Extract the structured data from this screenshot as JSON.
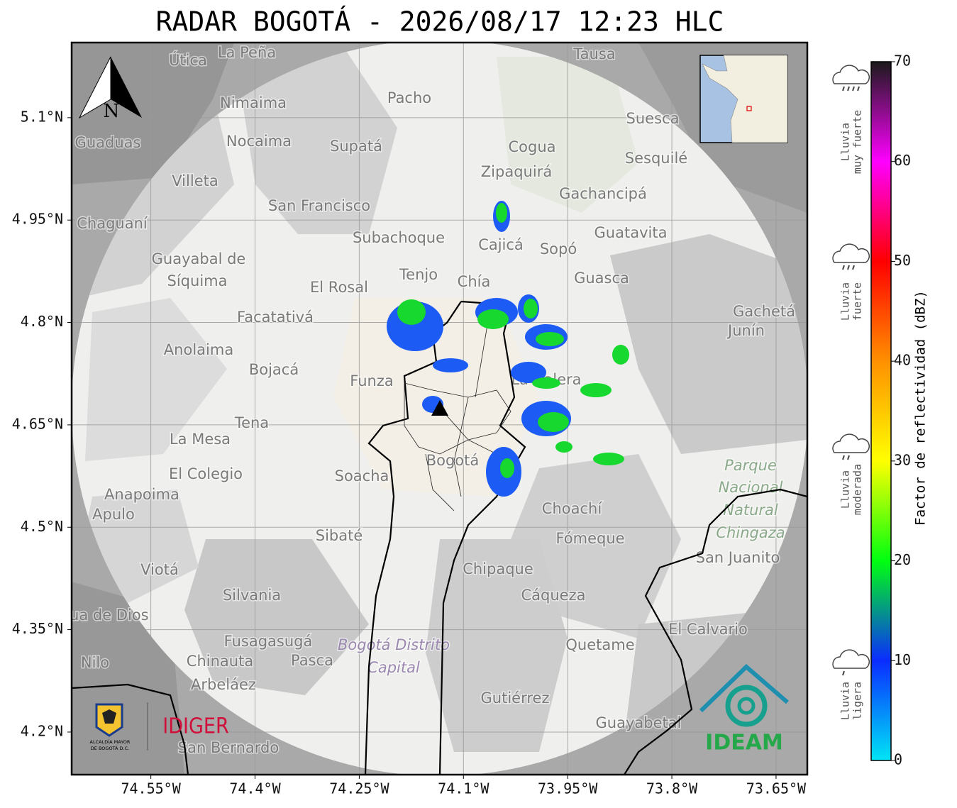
{
  "title": "RADAR BOGOTÁ - 2026/08/17 12:23 HLC",
  "map": {
    "lon_range": [
      -74.664,
      -73.605
    ],
    "lat_range": [
      4.1376,
      5.21
    ],
    "lon_ticks": [
      {
        "value": -74.55,
        "label": "74.55°W"
      },
      {
        "value": -74.4,
        "label": "74.4°W"
      },
      {
        "value": -74.25,
        "label": "74.25°W"
      },
      {
        "value": -74.1,
        "label": "74.1°W"
      },
      {
        "value": -73.95,
        "label": "73.95°W"
      },
      {
        "value": -73.8,
        "label": "73.8°W"
      },
      {
        "value": -73.65,
        "label": "73.65°W"
      }
    ],
    "lat_ticks": [
      {
        "value": 5.1,
        "label": "5.1°N"
      },
      {
        "value": 4.95,
        "label": "4.95°N"
      },
      {
        "value": 4.8,
        "label": "4.8°N"
      },
      {
        "value": 4.65,
        "label": "4.65°N"
      },
      {
        "value": 4.5,
        "label": "4.5°N"
      },
      {
        "value": 4.35,
        "label": "4.35°N"
      },
      {
        "value": 4.2,
        "label": "4.2°N"
      }
    ],
    "grid": true,
    "north_label": "N",
    "places": [
      "La Peña",
      "Útica",
      "Tausa",
      "Pacho",
      "Nimaima",
      "Guaduas",
      "Nocaima",
      "Supatá",
      "Suesca",
      "Cogua",
      "Sesquilé",
      "Zipaquirá",
      "Villeta",
      "Gachancipá",
      "San Francisco",
      "Chaguaní",
      "Guatavita",
      "Subachoque",
      "Cajicá",
      "Sopó",
      "Guayabal de",
      "Síquima",
      "Tenjo",
      "Guasca",
      "El Rosal",
      "Chía",
      "Facatativá",
      "Gachetá",
      "Junín",
      "Anolaima",
      "Bojacá",
      "Funza",
      "La Calera",
      "Tena",
      "La Mesa",
      "Bogotá",
      "Soacha",
      "El Colegio",
      "Parque",
      "Nacional",
      "Natural",
      "Chingaza",
      "Anapoima",
      "Apulo",
      "Choachí",
      "Sibaté",
      "Fómeque",
      "San Juanito",
      "Viotá",
      "Chipaque",
      "Silvania",
      "Cáqueza",
      "Agua de Dios",
      "El Calvario",
      "Fusagasugá",
      "Bogotá Distrito",
      "Capital",
      "Quetame",
      "Nilo",
      "Chinauta",
      "Pasca",
      "Arbeláez",
      "Gutiérrez",
      "Guayabetal",
      "San Bernardo"
    ]
  },
  "colorbar": {
    "label": "Factor de reflectividad (dBZ)",
    "lim": [
      0,
      70
    ],
    "ticks": [
      0,
      10,
      20,
      30,
      40,
      50,
      60,
      70
    ],
    "colors": [
      "#00e5f5",
      "#0a2cff",
      "#00ff10",
      "#ffff00",
      "#ff9000",
      "#ff0000",
      "#ff00ff",
      "#1a1a1a"
    ]
  },
  "rain_levels": [
    [
      "Lluvia",
      "muy fuerte"
    ],
    [
      "Lluvia",
      "fuerte"
    ],
    [
      "Lluvia",
      "moderada"
    ],
    [
      "Lluvia",
      "ligera"
    ]
  ],
  "logos": {
    "alcaldia": [
      "ALCALDÍA MAYOR",
      "DE BOGOTÁ D.C."
    ],
    "idiger": "IDIGER",
    "ideam": "IDEAM"
  }
}
